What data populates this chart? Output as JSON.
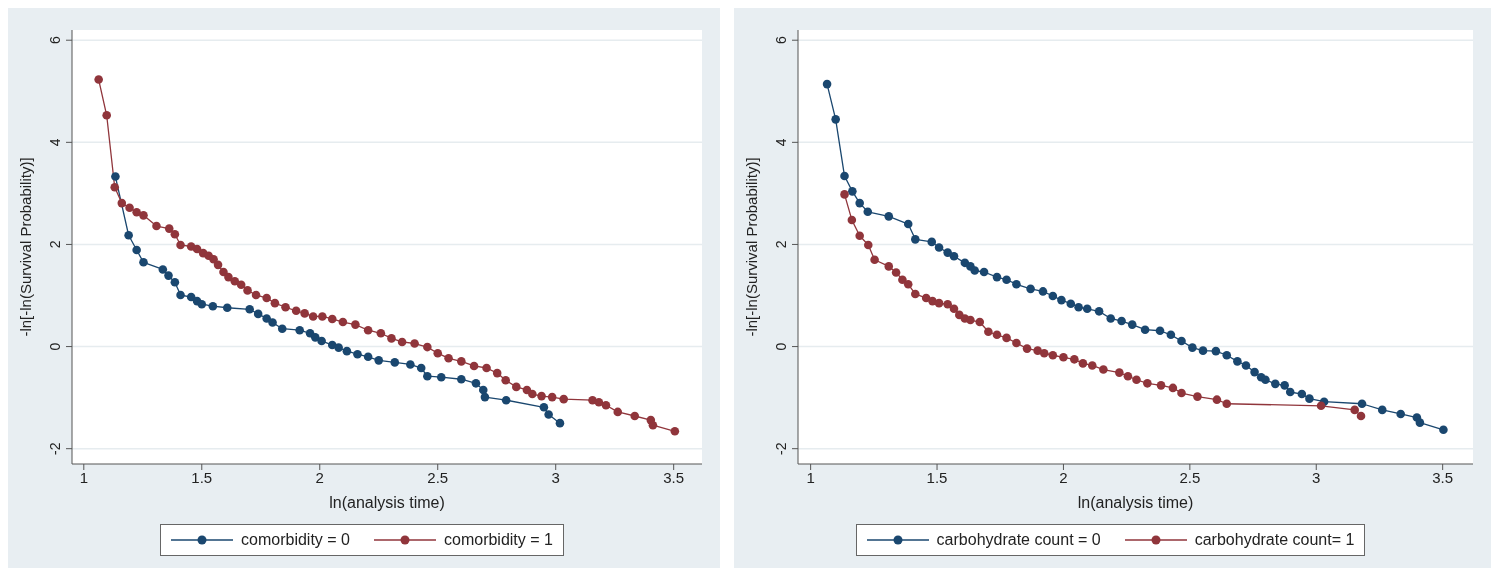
{
  "chart_data": [
    {
      "type": "line",
      "xlabel": "ln(analysis time)",
      "ylabel": "-ln[-ln(Survival Probability)]",
      "xlim": [
        0.95,
        3.62
      ],
      "xticks": [
        1,
        1.5,
        2,
        2.5,
        3,
        3.5
      ],
      "ylim": [
        -2.3,
        6.2
      ],
      "yticks": [
        -2,
        0,
        2,
        4,
        6
      ],
      "grid": "y",
      "legend": "bottom",
      "marker": "circle",
      "line_style": "solid",
      "series": [
        {
          "name": "comorbidity = 0",
          "color": "#1a476f",
          "x": [
            1.134,
            1.19,
            1.224,
            1.253,
            1.335,
            1.359,
            1.386,
            1.41,
            1.455,
            1.48,
            1.5,
            1.547,
            1.608,
            1.703,
            1.739,
            1.775,
            1.8,
            1.841,
            1.915,
            1.959,
            1.981,
            2.008,
            2.053,
            2.08,
            2.115,
            2.16,
            2.205,
            2.25,
            2.318,
            2.384,
            2.43,
            2.456,
            2.515,
            2.6,
            2.662,
            2.693,
            2.7,
            2.79,
            2.95,
            2.97,
            3.018
          ],
          "values": [
            3.33,
            2.18,
            1.89,
            1.65,
            1.51,
            1.39,
            1.26,
            1.01,
            0.97,
            0.89,
            0.83,
            0.79,
            0.76,
            0.73,
            0.64,
            0.55,
            0.47,
            0.35,
            0.32,
            0.26,
            0.18,
            0.11,
            0.03,
            -0.02,
            -0.09,
            -0.15,
            -0.2,
            -0.27,
            -0.31,
            -0.35,
            -0.42,
            -0.58,
            -0.6,
            -0.64,
            -0.72,
            -0.85,
            -0.99,
            -1.05,
            -1.19,
            -1.33,
            -1.5
          ]
        },
        {
          "name": "comorbidity = 1",
          "color": "#90353b",
          "x": [
            1.063,
            1.097,
            1.131,
            1.161,
            1.194,
            1.224,
            1.253,
            1.308,
            1.362,
            1.386,
            1.41,
            1.455,
            1.48,
            1.506,
            1.529,
            1.55,
            1.569,
            1.592,
            1.613,
            1.64,
            1.667,
            1.694,
            1.73,
            1.775,
            1.81,
            1.855,
            1.9,
            1.936,
            1.972,
            2.011,
            2.053,
            2.098,
            2.151,
            2.205,
            2.259,
            2.304,
            2.349,
            2.402,
            2.456,
            2.5,
            2.546,
            2.6,
            2.654,
            2.707,
            2.752,
            2.788,
            2.833,
            2.878,
            2.901,
            2.94,
            2.985,
            3.034,
            3.156,
            3.183,
            3.213,
            3.263,
            3.335,
            3.403,
            3.412,
            3.505
          ],
          "values": [
            5.23,
            4.53,
            3.12,
            2.81,
            2.72,
            2.63,
            2.57,
            2.36,
            2.31,
            2.2,
            1.99,
            1.96,
            1.91,
            1.83,
            1.78,
            1.71,
            1.6,
            1.46,
            1.36,
            1.28,
            1.21,
            1.1,
            1.01,
            0.95,
            0.85,
            0.77,
            0.7,
            0.65,
            0.59,
            0.59,
            0.54,
            0.48,
            0.43,
            0.32,
            0.26,
            0.16,
            0.09,
            0.06,
            -0.01,
            -0.13,
            -0.23,
            -0.29,
            -0.38,
            -0.42,
            -0.52,
            -0.66,
            -0.79,
            -0.85,
            -0.93,
            -0.97,
            -0.99,
            -1.03,
            -1.05,
            -1.09,
            -1.15,
            -1.28,
            -1.36,
            -1.44,
            -1.54,
            -1.66
          ]
        }
      ]
    },
    {
      "type": "line",
      "xlabel": "ln(analysis time)",
      "ylabel": "-ln[-ln(Survival Probability)]",
      "xlim": [
        0.95,
        3.62
      ],
      "xticks": [
        1,
        1.5,
        2,
        2.5,
        3,
        3.5
      ],
      "ylim": [
        -2.3,
        6.2
      ],
      "yticks": [
        -2,
        0,
        2,
        4,
        6
      ],
      "grid": "y",
      "legend": "bottom",
      "marker": "circle",
      "line_style": "solid",
      "series": [
        {
          "name": "carbohydrate count = 0",
          "color": "#1a476f",
          "x": [
            1.065,
            1.099,
            1.134,
            1.165,
            1.194,
            1.226,
            1.309,
            1.386,
            1.414,
            1.479,
            1.508,
            1.542,
            1.567,
            1.61,
            1.632,
            1.649,
            1.686,
            1.737,
            1.775,
            1.814,
            1.87,
            1.919,
            1.958,
            1.992,
            2.029,
            2.06,
            2.094,
            2.141,
            2.187,
            2.23,
            2.272,
            2.323,
            2.382,
            2.425,
            2.467,
            2.51,
            2.552,
            2.603,
            2.646,
            2.688,
            2.722,
            2.756,
            2.782,
            2.799,
            2.838,
            2.875,
            2.897,
            2.943,
            2.973,
            3.031,
            3.181,
            3.261,
            3.334,
            3.398,
            3.41,
            3.503
          ],
          "values": [
            5.14,
            4.45,
            3.34,
            3.04,
            2.81,
            2.64,
            2.55,
            2.4,
            2.1,
            2.05,
            1.94,
            1.84,
            1.77,
            1.64,
            1.57,
            1.49,
            1.46,
            1.36,
            1.31,
            1.22,
            1.13,
            1.08,
            0.99,
            0.91,
            0.84,
            0.77,
            0.74,
            0.69,
            0.55,
            0.5,
            0.43,
            0.33,
            0.31,
            0.23,
            0.11,
            -0.02,
            -0.08,
            -0.09,
            -0.17,
            -0.29,
            -0.37,
            -0.5,
            -0.6,
            -0.65,
            -0.73,
            -0.76,
            -0.89,
            -0.93,
            -1.02,
            -1.08,
            -1.12,
            -1.24,
            -1.32,
            -1.39,
            -1.49,
            -1.63
          ]
        },
        {
          "name": "carbohydrate count= 1",
          "color": "#90353b",
          "x": [
            1.134,
            1.163,
            1.194,
            1.228,
            1.253,
            1.309,
            1.338,
            1.363,
            1.386,
            1.414,
            1.457,
            1.482,
            1.508,
            1.542,
            1.567,
            1.588,
            1.61,
            1.632,
            1.669,
            1.703,
            1.737,
            1.775,
            1.814,
            1.856,
            1.898,
            1.924,
            1.958,
            2.0,
            2.043,
            2.077,
            2.114,
            2.158,
            2.221,
            2.255,
            2.289,
            2.332,
            2.386,
            2.433,
            2.467,
            2.53,
            2.607,
            2.646,
            3.019,
            3.152,
            3.177
          ],
          "values": [
            2.98,
            2.48,
            2.17,
            1.99,
            1.7,
            1.57,
            1.45,
            1.31,
            1.22,
            1.03,
            0.95,
            0.89,
            0.85,
            0.83,
            0.74,
            0.62,
            0.55,
            0.52,
            0.48,
            0.29,
            0.23,
            0.17,
            0.07,
            -0.04,
            -0.08,
            -0.13,
            -0.17,
            -0.21,
            -0.25,
            -0.33,
            -0.37,
            -0.45,
            -0.51,
            -0.58,
            -0.65,
            -0.72,
            -0.76,
            -0.81,
            -0.91,
            -0.98,
            -1.04,
            -1.12,
            -1.16,
            -1.24,
            -1.36
          ]
        }
      ]
    }
  ]
}
